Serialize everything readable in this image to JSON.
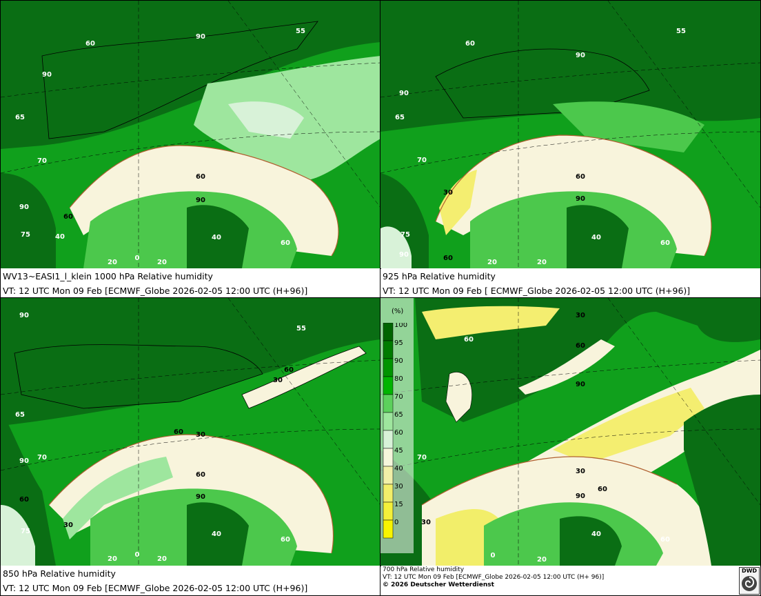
{
  "panels": [
    {
      "line1": "WV13~EASI1_l_klein 1000 hPa Relative humidity",
      "line2": "VT: 12 UTC Mon  09 Feb [ECMWF_Globe 2026-02-05 12:00 UTC  (H+96)]",
      "labels": [
        "60",
        "90",
        "55",
        "90",
        "65",
        "70",
        "60",
        "90",
        "60",
        "90",
        "75",
        "40",
        "20",
        "0",
        "20",
        "40",
        "60"
      ]
    },
    {
      "line1": "925 hPa Relative humidity",
      "line2": "VT: 12 UTC Mon  09 Feb [ ECMWF_Globe 2026-02-05 12:00 UTC (H+96)]",
      "labels": [
        "60",
        "90",
        "55",
        "90",
        "65",
        "70",
        "30",
        "60",
        "90",
        "75",
        "90",
        "60",
        "20",
        "20",
        "40",
        "60"
      ]
    },
    {
      "line1": "850 hPa  Relative humidity",
      "line2": "VT: 12 UTC Mon  09 Feb [ECMWF_Globe 2026-02-05 12:00 UTC  (H+96)]",
      "labels": [
        "90",
        "55",
        "60",
        "30",
        "65",
        "70",
        "90",
        "60",
        "30",
        "60",
        "90",
        "60",
        "75",
        "30",
        "40",
        "60",
        "20",
        "0",
        "20"
      ]
    },
    {
      "line1": "700 hPa Relative humidity",
      "line2": "VT: 12 UTC Mon  09 Feb [ECMWF_Globe 2026-02-05 12:00 UTC  (H+ 96)]",
      "line3": "© 2026 Deutscher Wetterdienst",
      "labels": [
        "60",
        "30",
        "60",
        "90",
        "70",
        "30",
        "60",
        "90",
        "30",
        "40",
        "60",
        "20",
        "0"
      ]
    }
  ],
  "legend": {
    "unit": "(%)",
    "levels": [
      "100",
      "95",
      "90",
      "80",
      "70",
      "65",
      "60",
      "45",
      "40",
      "30",
      "15",
      "0"
    ],
    "colors": [
      "#006400",
      "#007b00",
      "#009400",
      "#00b400",
      "#5cd05c",
      "#9ee69e",
      "#d8f2d8",
      "#f6f6dc",
      "#f2f0a8",
      "#f2ee6a",
      "#f4f03a",
      "#f8f400"
    ]
  },
  "logo_text": "DWD",
  "colors": {
    "dark_green": "#0a6e14",
    "mid_green": "#10a01c",
    "light_green": "#4cc84c",
    "pale_green": "#b8ecb8",
    "cream": "#f8f4dc",
    "yellow": "#f4ee70",
    "coast": "#b06030"
  }
}
